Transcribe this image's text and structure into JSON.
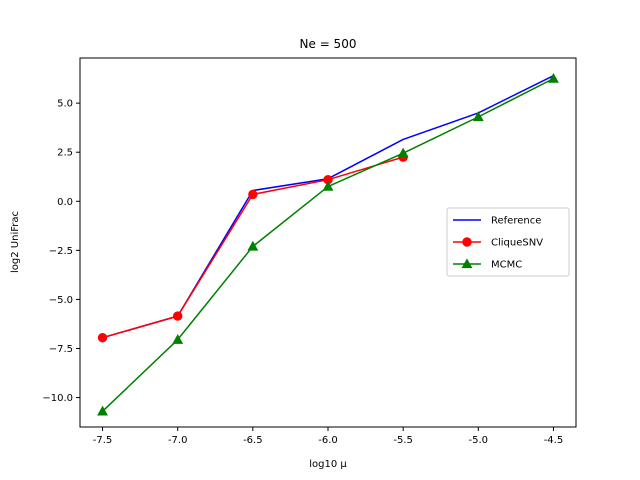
{
  "chart_data": {
    "type": "line",
    "title": "Ne = 500",
    "xlabel": "log10 μ",
    "ylabel": "log2 UniFrac",
    "xlim": [
      -7.65,
      -4.35
    ],
    "ylim": [
      -11.5,
      7.3
    ],
    "xticks": [
      -7.5,
      -7.0,
      -6.5,
      -6.0,
      -5.5,
      -5.0,
      -4.5
    ],
    "xtick_labels": [
      "-7.5",
      "-7.0",
      "-6.5",
      "-6.0",
      "-5.5",
      "-5.0",
      "-4.5"
    ],
    "yticks": [
      5.0,
      2.5,
      0.0,
      -2.5,
      -5.0,
      -7.5,
      -10.0
    ],
    "ytick_labels": [
      "5.0",
      "2.5",
      "0.0",
      "−2.5",
      "−5.0",
      "−7.5",
      "−10.0"
    ],
    "grid": false,
    "legend_position": "center-right",
    "series": [
      {
        "name": "Reference",
        "color": "#0000ff",
        "marker": "none",
        "x": [
          -7.5,
          -7.0,
          -6.5,
          -6.0,
          -5.5,
          -5.0,
          -4.5
        ],
        "y": [
          -6.95,
          -5.85,
          0.55,
          1.15,
          3.15,
          4.5,
          6.4
        ]
      },
      {
        "name": "CliqueSNV",
        "color": "#ff0000",
        "marker": "circle",
        "x": [
          -7.5,
          -7.0,
          -6.5,
          -6.0,
          -5.5
        ],
        "y": [
          -6.95,
          -5.85,
          0.35,
          1.1,
          2.25
        ]
      },
      {
        "name": "MCMC",
        "color": "#008000",
        "marker": "triangle",
        "x": [
          -7.5,
          -7.0,
          -6.5,
          -6.0,
          -5.5,
          -5.0,
          -4.5
        ],
        "y": [
          -10.7,
          -7.05,
          -2.3,
          0.75,
          2.45,
          4.3,
          6.25
        ]
      }
    ]
  }
}
